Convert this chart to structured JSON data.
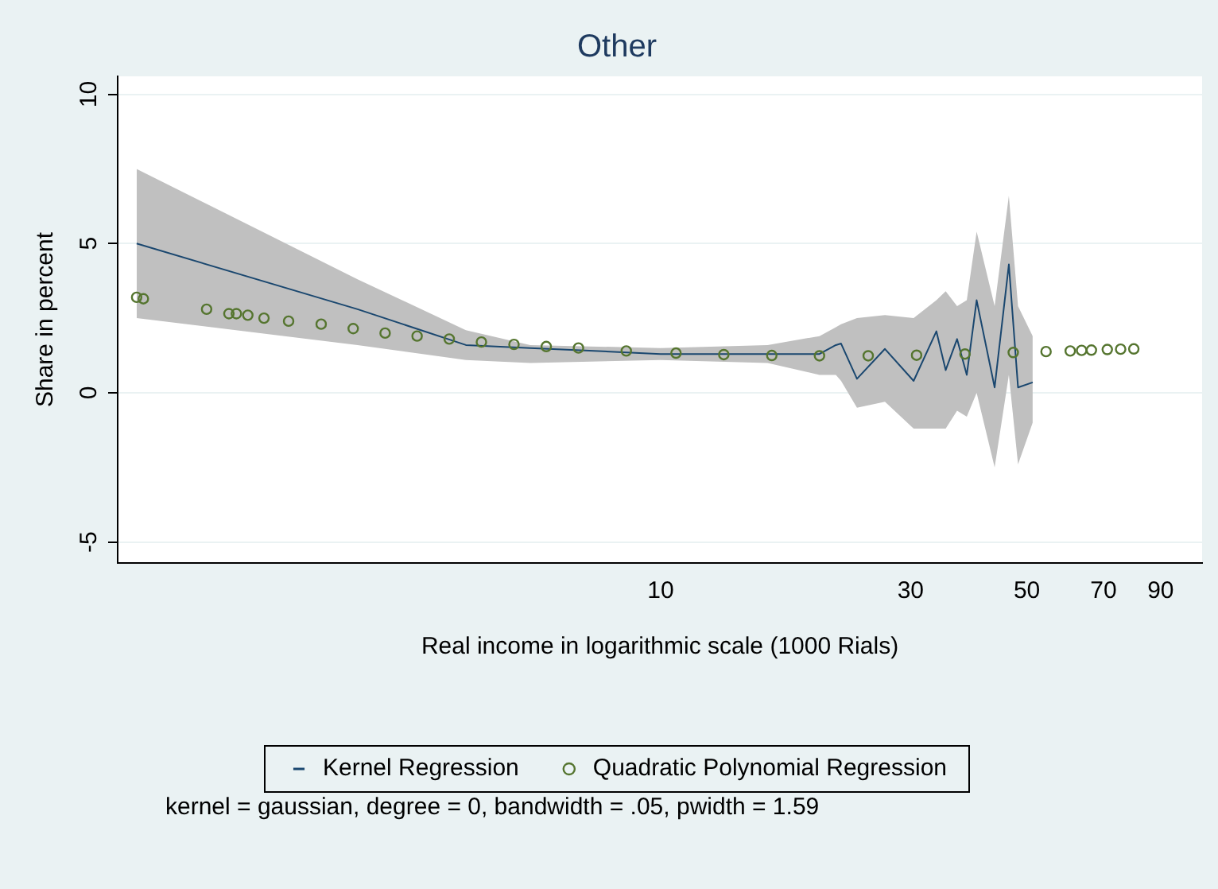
{
  "chart_data": {
    "type": "line",
    "title": "Other",
    "xlabel": "Real income in logarithmic scale (1000 Rials)",
    "ylabel": "Share in percent",
    "log": "x",
    "xlim": [
      0.92,
      108
    ],
    "xticks": [
      10,
      30,
      50,
      70,
      90
    ],
    "ylim": [
      -5.7,
      10.6
    ],
    "yticks": [
      -5,
      0,
      5,
      10
    ],
    "grid": "y",
    "legend": "bottom",
    "annotations": [
      "kernel = gaussian, degree = 0, bandwidth = .05, pwidth = 1.59"
    ],
    "series": [
      {
        "name": "Kernel Regression",
        "type": "line",
        "color": "#1a476f",
        "marker": "none",
        "line_style": "solid",
        "x": [
          1.0,
          2.64,
          4.25,
          5.64,
          10,
          16,
          20.1,
          21.6,
          22.1,
          23.7,
          26.8,
          30.4,
          33.6,
          35,
          36.8,
          38.4,
          40.1,
          43.4,
          46.2,
          48.1,
          51.3
        ],
        "values": [
          5,
          2.8,
          1.6,
          1.5,
          1.3,
          1.3,
          1.3,
          1.6,
          1.65,
          0.47,
          1.47,
          0.4,
          2.06,
          0.76,
          1.8,
          0.6,
          3.1,
          0.18,
          4.3,
          0.18,
          0.35
        ],
        "upper": [
          7.5,
          3.8,
          2.1,
          1.6,
          1.5,
          1.6,
          1.9,
          2.2,
          2.3,
          2.5,
          2.6,
          2.5,
          3.1,
          3.4,
          2.9,
          3.1,
          5.4,
          2.9,
          6.6,
          2.9,
          1.9
        ],
        "lower": [
          2.5,
          1.6,
          1.1,
          1.0,
          1.1,
          1.0,
          0.6,
          0.6,
          0.4,
          -0.5,
          -0.3,
          -1.2,
          -1.2,
          -1.2,
          -0.6,
          -0.8,
          0,
          -2.5,
          0.6,
          -2.4,
          -1
        ]
      },
      {
        "name": "Quadratic Polynomial Regression",
        "type": "scatter",
        "color": "#55752f",
        "marker": "circle",
        "x": [
          1.0,
          1.03,
          1.36,
          1.5,
          1.55,
          1.63,
          1.75,
          1.95,
          2.25,
          2.59,
          2.98,
          3.43,
          3.95,
          4.55,
          5.25,
          6.05,
          6.97,
          8.6,
          10.7,
          13.2,
          16.3,
          20.1,
          24.9,
          30.8,
          38.1,
          47.1,
          54.4,
          60.5,
          63.6,
          66.4,
          71.2,
          75.5,
          80
        ],
        "values": [
          3.2,
          3.15,
          2.8,
          2.65,
          2.65,
          2.6,
          2.5,
          2.4,
          2.3,
          2.15,
          2.0,
          1.9,
          1.8,
          1.7,
          1.62,
          1.55,
          1.5,
          1.4,
          1.33,
          1.28,
          1.25,
          1.24,
          1.24,
          1.26,
          1.3,
          1.35,
          1.38,
          1.4,
          1.42,
          1.43,
          1.45,
          1.46,
          1.47
        ]
      }
    ]
  }
}
